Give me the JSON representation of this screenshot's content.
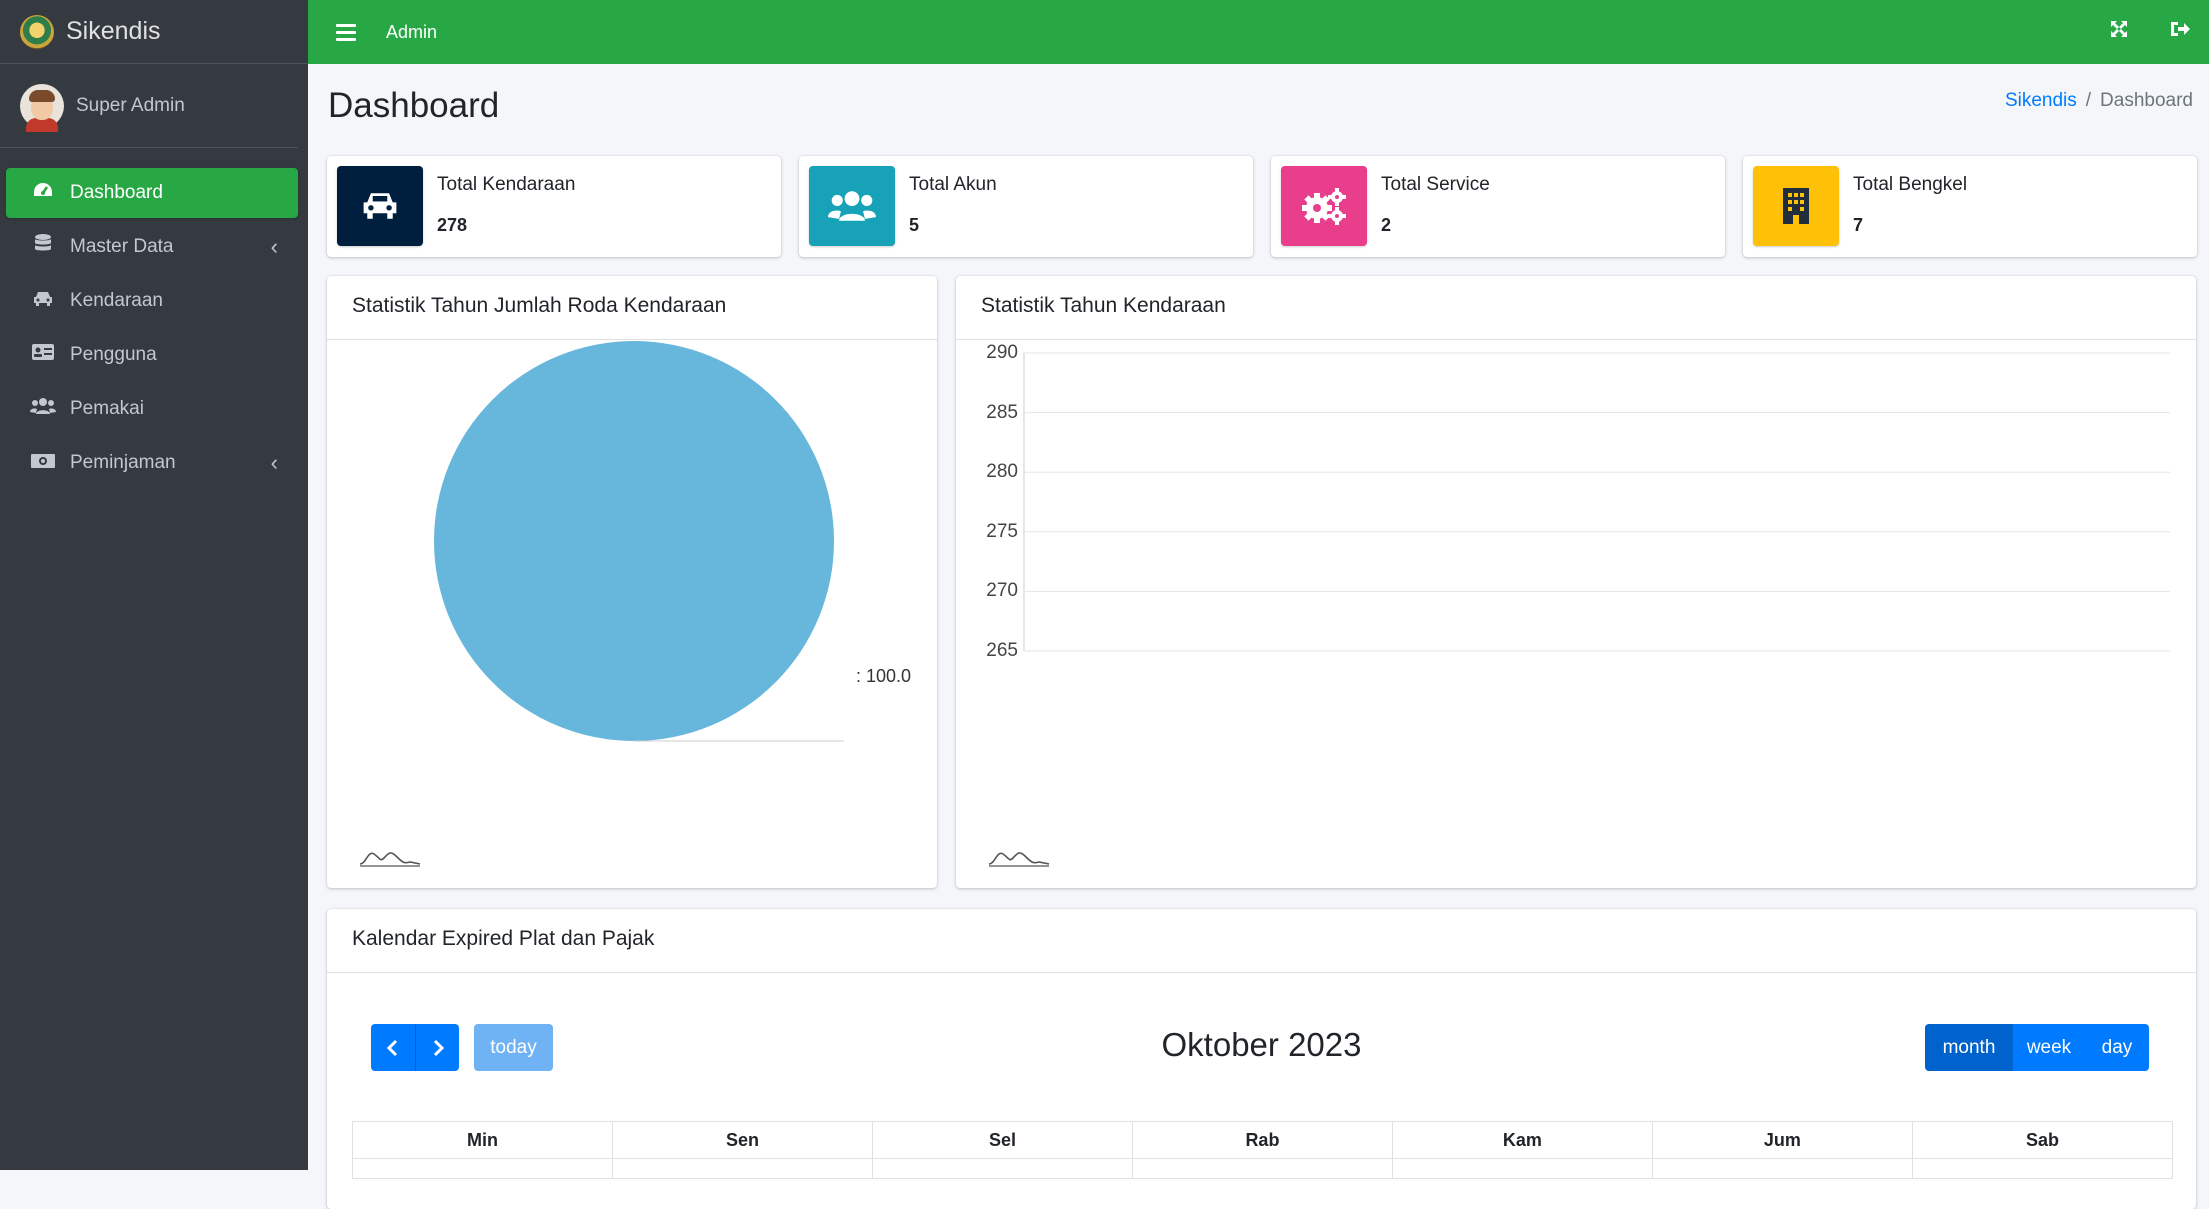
{
  "brand": {
    "name": "Sikendis"
  },
  "user": {
    "name": "Super Admin"
  },
  "sidebar": {
    "items": [
      {
        "label": "Dashboard",
        "icon": "tachometer-icon",
        "active": true,
        "submenu": false
      },
      {
        "label": "Master Data",
        "icon": "database-icon",
        "active": false,
        "submenu": true
      },
      {
        "label": "Kendaraan",
        "icon": "car-icon",
        "active": false,
        "submenu": false
      },
      {
        "label": "Pengguna",
        "icon": "id-card-icon",
        "active": false,
        "submenu": false
      },
      {
        "label": "Pemakai",
        "icon": "users-icon",
        "active": false,
        "submenu": false
      },
      {
        "label": "Peminjaman",
        "icon": "money-bill-icon",
        "active": false,
        "submenu": true
      }
    ]
  },
  "topbar": {
    "title": "Admin",
    "icons": [
      "menu-icon",
      "fullscreen-icon",
      "logout-icon"
    ]
  },
  "page": {
    "title": "Dashboard"
  },
  "breadcrumb": {
    "home": "Sikendis",
    "current": "Dashboard"
  },
  "stats": [
    {
      "label": "Total Kendaraan",
      "value": "278",
      "icon": "car-icon",
      "color": "#001f3f"
    },
    {
      "label": "Total Akun",
      "value": "5",
      "icon": "users-icon",
      "color": "#17a2b8"
    },
    {
      "label": "Total Service",
      "value": "2",
      "icon": "cogs-icon",
      "color": "#e83e8c"
    },
    {
      "label": "Total Bengkel",
      "value": "7",
      "icon": "building-icon",
      "color": "#ffc107"
    }
  ],
  "pie_card": {
    "title": "Statistik Tahun Jumlah Roda Kendaraan",
    "slice_label": ": 100.0"
  },
  "line_card": {
    "title": "Statistik Tahun Kendaraan"
  },
  "chart_data": [
    {
      "type": "pie",
      "title": "Statistik Tahun Jumlah Roda Kendaraan",
      "slices": [
        {
          "label": "",
          "value": 100.0,
          "color": "#67b6dc"
        }
      ]
    },
    {
      "type": "line",
      "title": "Statistik Tahun Kendaraan",
      "yticks": [
        "290",
        "285",
        "280",
        "275",
        "270",
        "265"
      ],
      "ylim": [
        265,
        290
      ],
      "grid": true,
      "series": []
    }
  ],
  "calendar": {
    "title": "Kalendar Expired Plat dan Pajak",
    "month_title": "Oktober 2023",
    "today_label": "today",
    "views": [
      "month",
      "week",
      "day"
    ],
    "active_view": "month",
    "weekdays": [
      "Min",
      "Sen",
      "Sel",
      "Rab",
      "Kam",
      "Jum",
      "Sab"
    ]
  }
}
